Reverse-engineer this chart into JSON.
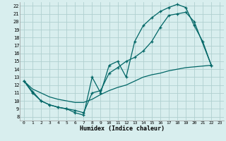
{
  "xlabel": "Humidex (Indice chaleur)",
  "background_color": "#d8eeee",
  "grid_color": "#b0d0d0",
  "line_color": "#006666",
  "xlim": [
    -0.5,
    23.5
  ],
  "ylim": [
    7.5,
    22.5
  ],
  "xticks": [
    0,
    1,
    2,
    3,
    4,
    5,
    6,
    7,
    8,
    9,
    10,
    11,
    12,
    13,
    14,
    15,
    16,
    17,
    18,
    19,
    20,
    21,
    22,
    23
  ],
  "yticks": [
    8,
    9,
    10,
    11,
    12,
    13,
    14,
    15,
    16,
    17,
    18,
    19,
    20,
    21,
    22
  ],
  "line1_x": [
    0,
    1,
    2,
    3,
    4,
    5,
    6,
    7,
    8,
    9,
    10,
    11,
    12,
    13,
    14,
    15,
    16,
    17,
    18,
    19,
    20,
    21,
    22
  ],
  "line1_y": [
    12.5,
    11,
    10,
    9.5,
    9.2,
    9.0,
    8.5,
    8.2,
    13.0,
    11.0,
    14.5,
    15.0,
    13.0,
    17.5,
    19.5,
    20.5,
    21.3,
    21.8,
    22.2,
    21.8,
    19.5,
    17.5,
    14.5
  ],
  "line2_x": [
    0,
    1,
    2,
    3,
    4,
    5,
    6,
    7,
    8,
    9,
    10,
    11,
    12,
    13,
    14,
    15,
    16,
    17,
    18,
    19,
    20,
    22
  ],
  "line2_y": [
    12.5,
    11.2,
    10,
    9.5,
    9.2,
    9.0,
    8.8,
    8.5,
    11.0,
    11.3,
    13.5,
    14.2,
    15.0,
    15.5,
    16.3,
    17.5,
    19.3,
    20.8,
    21.0,
    21.2,
    20.0,
    14.5
  ],
  "line3_x": [
    0,
    1,
    2,
    3,
    4,
    5,
    6,
    7,
    8,
    9,
    10,
    11,
    12,
    13,
    14,
    15,
    16,
    17,
    18,
    19,
    20,
    21,
    22
  ],
  "line3_y": [
    12.5,
    11.5,
    11.0,
    10.5,
    10.2,
    10.0,
    9.8,
    9.8,
    10.2,
    10.8,
    11.3,
    11.7,
    12.0,
    12.5,
    13.0,
    13.3,
    13.5,
    13.8,
    14.0,
    14.2,
    14.3,
    14.4,
    14.5
  ]
}
